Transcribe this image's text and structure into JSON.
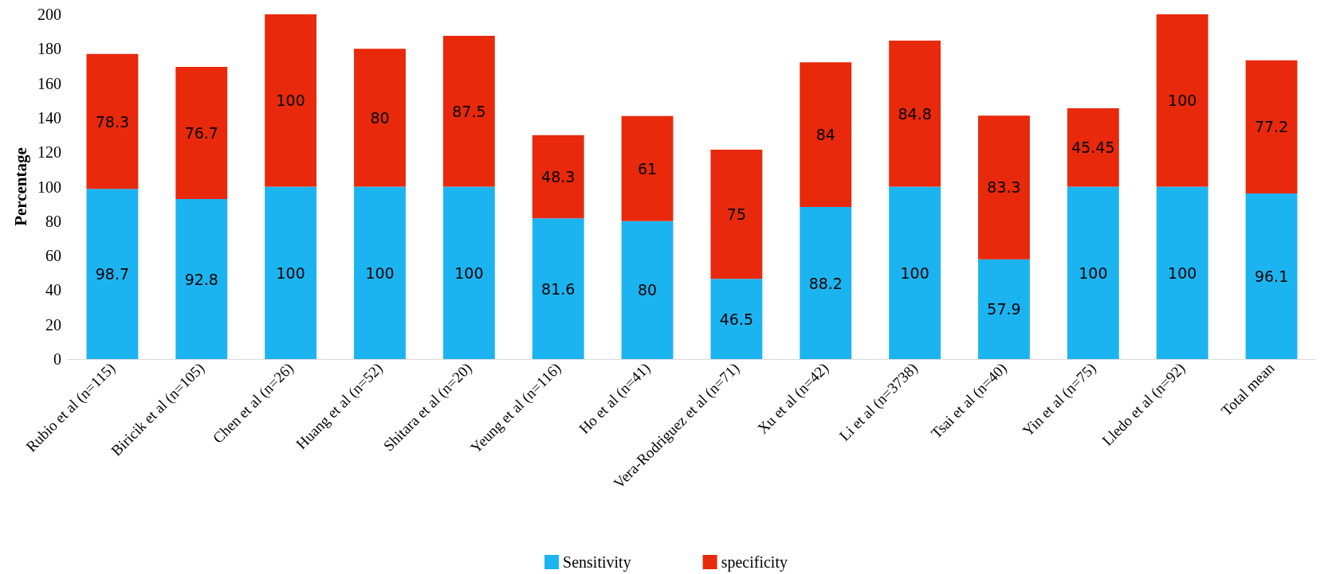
{
  "chart_data": {
    "type": "bar",
    "stacked": true,
    "ylabel": "Percentage",
    "categories": [
      "Rubio et al (n=115)",
      "Biricik et al (n=105)",
      "Chen et al (n=26)",
      "Huang et al (n=52)",
      "Shitara et al (n=20)",
      "Yeung et al (n=116)",
      "Ho et al (n=41)",
      "Vera-Rodriguez et al (n=71)",
      "Xu et al (n=42)",
      "Li et al (n=3738)",
      "Tsai et al (n=40)",
      "Yin et al (n=75)",
      "Lledo et al (n=92)",
      "Total mean"
    ],
    "series": [
      {
        "name": "Sensitivity",
        "color": "#1cb4f0",
        "values": [
          98.7,
          92.8,
          100,
          100,
          100,
          81.6,
          80,
          46.5,
          88.2,
          100,
          57.9,
          100,
          100,
          96.1
        ]
      },
      {
        "name": "specificity",
        "color": "#e8290c",
        "values": [
          78.3,
          76.7,
          100,
          80,
          87.5,
          48.3,
          61,
          75,
          84,
          84.8,
          83.3,
          45.45,
          100,
          77.2
        ]
      }
    ],
    "ylim": [
      0,
      200
    ],
    "yticks": [
      0,
      20,
      40,
      60,
      80,
      100,
      120,
      140,
      160,
      180,
      200
    ],
    "grid": false,
    "legend": "bottom",
    "data_labels": true
  }
}
